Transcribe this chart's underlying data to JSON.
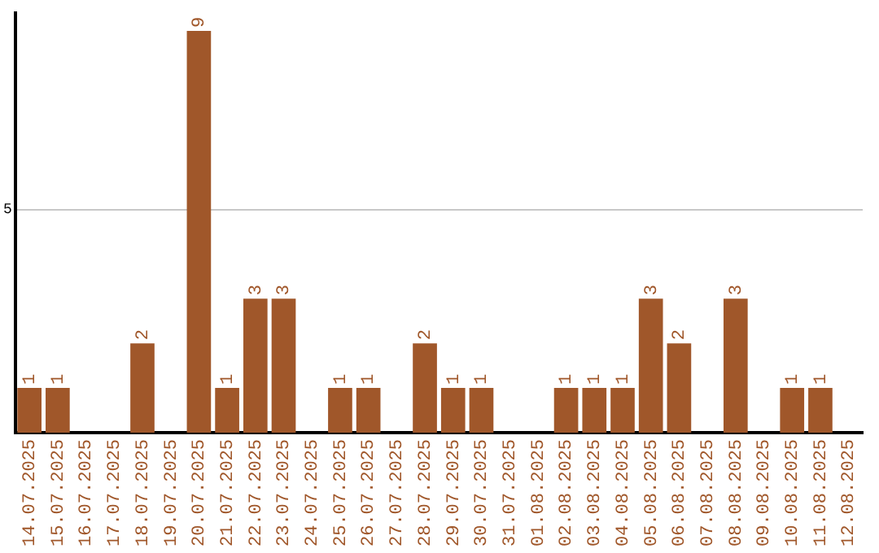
{
  "chart_data": {
    "type": "bar",
    "categories": [
      "14.07.2025",
      "15.07.2025",
      "16.07.2025",
      "17.07.2025",
      "18.07.2025",
      "19.07.2025",
      "20.07.2025",
      "21.07.2025",
      "22.07.2025",
      "23.07.2025",
      "24.07.2025",
      "25.07.2025",
      "26.07.2025",
      "27.07.2025",
      "28.07.2025",
      "29.07.2025",
      "30.07.2025",
      "31.07.2025",
      "01.08.2025",
      "02.08.2025",
      "03.08.2025",
      "04.08.2025",
      "05.08.2025",
      "06.08.2025",
      "07.08.2025",
      "08.08.2025",
      "09.08.2025",
      "10.08.2025",
      "11.08.2025",
      "12.08.2025"
    ],
    "values": [
      1,
      1,
      0,
      0,
      2,
      0,
      9,
      1,
      3,
      3,
      0,
      1,
      1,
      0,
      2,
      1,
      1,
      0,
      0,
      1,
      1,
      1,
      3,
      2,
      0,
      3,
      0,
      1,
      1,
      0
    ],
    "value_labels": [
      "1",
      "1",
      null,
      null,
      "2",
      null,
      "9",
      "1",
      "3",
      "3",
      null,
      "1",
      "1",
      null,
      "2",
      "1",
      "1",
      null,
      null,
      "1",
      "1",
      "1",
      "3",
      "2",
      null,
      "3",
      null,
      "1",
      "1",
      null
    ],
    "color": "#a0572a",
    "ylim": [
      0,
      9.4
    ],
    "yticks": [
      5
    ],
    "grid": "y",
    "legend": false
  }
}
